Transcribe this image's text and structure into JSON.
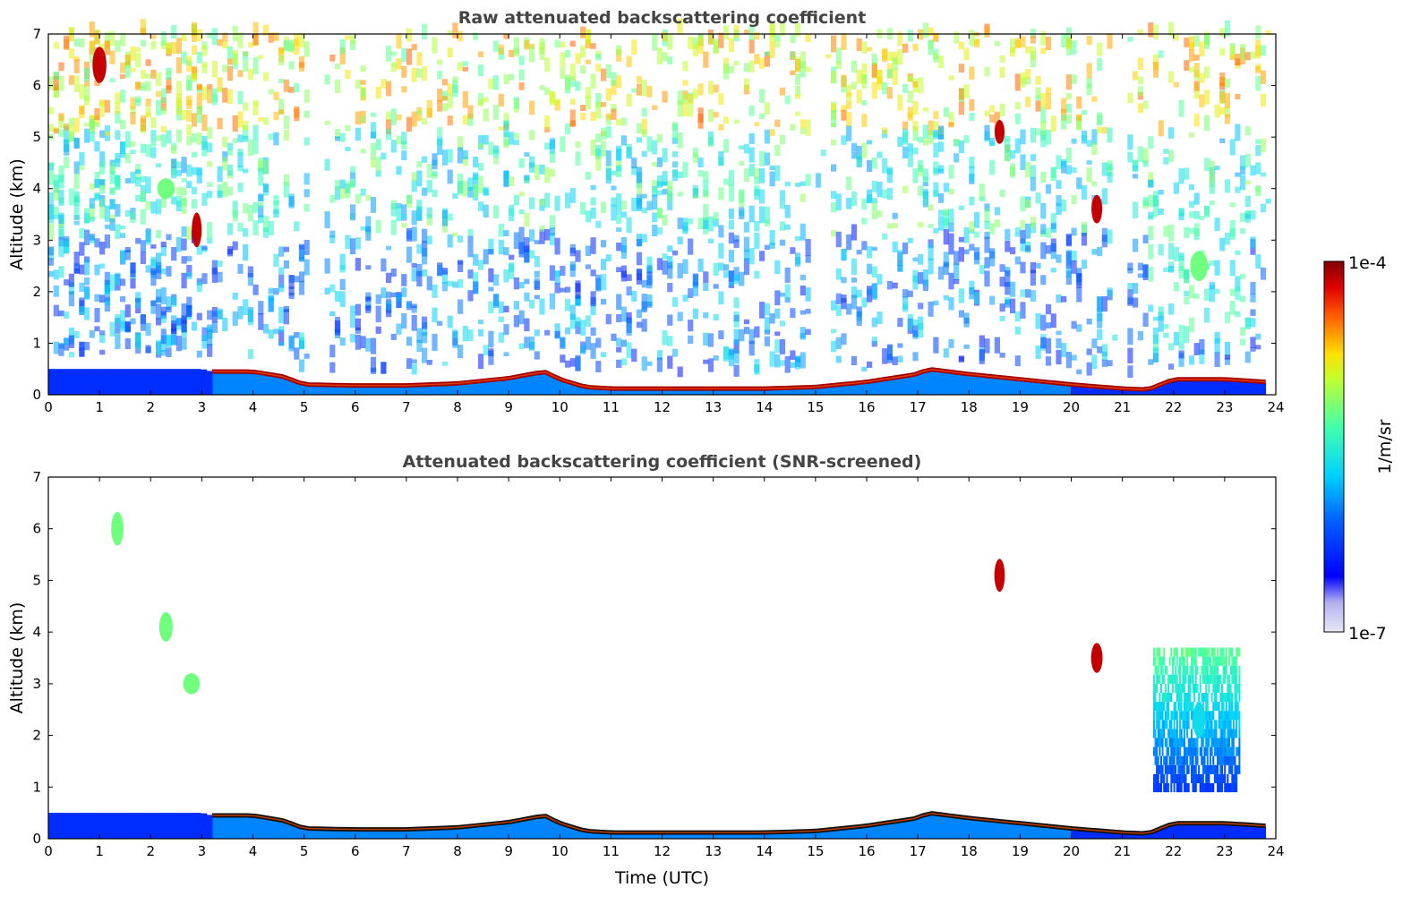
{
  "chart_data": [
    {
      "type": "heatmap",
      "title": "Raw attenuated backscattering coefficient",
      "xlabel": "",
      "ylabel": "Altitude (km)",
      "xlim": [
        0,
        24
      ],
      "ylim": [
        0,
        7
      ],
      "x_ticks": [
        "0",
        "1",
        "2",
        "3",
        "4",
        "5",
        "6",
        "7",
        "8",
        "9",
        "10",
        "11",
        "12",
        "13",
        "14",
        "15",
        "16",
        "17",
        "18",
        "19",
        "20",
        "21",
        "22",
        "23",
        "24"
      ],
      "y_ticks": [
        "0",
        "1",
        "2",
        "3",
        "4",
        "5",
        "6",
        "7"
      ],
      "grid": false,
      "color_scale": "log",
      "boundary_layer_top_km": {
        "time_utc": [
          0,
          3,
          3.2,
          4,
          4.6,
          5,
          6,
          7,
          8,
          9,
          9.7,
          10,
          10.5,
          11,
          12,
          13,
          14,
          15,
          16,
          17,
          17.2,
          18,
          19,
          20,
          21,
          21.5,
          22,
          23,
          23.8
        ],
        "altitude": [
          0.5,
          0.5,
          0.45,
          0.45,
          0.35,
          0.2,
          0.18,
          0.18,
          0.22,
          0.32,
          0.45,
          0.3,
          0.15,
          0.12,
          0.12,
          0.12,
          0.12,
          0.15,
          0.25,
          0.4,
          0.5,
          0.4,
          0.3,
          0.2,
          0.12,
          0.1,
          0.3,
          0.3,
          0.25
        ]
      },
      "notable_features": [
        {
          "time_utc": 1.0,
          "altitude_km": 6.4,
          "level": "high"
        },
        {
          "time_utc": 2.3,
          "altitude_km": 4.0,
          "level": "medium"
        },
        {
          "time_utc": 2.9,
          "altitude_km": 3.2,
          "level": "high"
        },
        {
          "time_utc": 18.6,
          "altitude_km": 5.1,
          "level": "high"
        },
        {
          "time_utc": 20.5,
          "altitude_km": 3.6,
          "level": "high"
        },
        {
          "time_utc": 22.5,
          "altitude_km": 2.5,
          "level": "medium"
        }
      ]
    },
    {
      "type": "heatmap",
      "title": "Attenuated backscattering coefficient (SNR-screened)",
      "xlabel": "Time (UTC)",
      "ylabel": "Altitude (km)",
      "xlim": [
        0,
        24
      ],
      "ylim": [
        0,
        7
      ],
      "x_ticks": [
        "0",
        "1",
        "2",
        "3",
        "4",
        "5",
        "6",
        "7",
        "8",
        "9",
        "10",
        "11",
        "12",
        "13",
        "14",
        "15",
        "16",
        "17",
        "18",
        "19",
        "20",
        "21",
        "22",
        "23",
        "24"
      ],
      "y_ticks": [
        "0",
        "1",
        "2",
        "3",
        "4",
        "5",
        "6",
        "7"
      ],
      "grid": false,
      "color_scale": "log",
      "boundary_layer_top_km": {
        "time_utc": [
          0,
          3,
          3.2,
          4,
          4.6,
          5,
          6,
          7,
          8,
          9,
          9.7,
          10,
          10.5,
          11,
          12,
          13,
          14,
          15,
          16,
          17,
          17.2,
          18,
          19,
          20,
          21,
          21.5,
          22,
          23,
          23.8
        ],
        "altitude": [
          0.5,
          0.5,
          0.45,
          0.45,
          0.35,
          0.2,
          0.18,
          0.18,
          0.22,
          0.32,
          0.45,
          0.3,
          0.15,
          0.12,
          0.12,
          0.12,
          0.12,
          0.15,
          0.25,
          0.4,
          0.5,
          0.4,
          0.3,
          0.2,
          0.12,
          0.1,
          0.3,
          0.3,
          0.25
        ]
      },
      "notable_features": [
        {
          "time_utc": 1.35,
          "altitude_km": 6.0,
          "level": "medium"
        },
        {
          "time_utc": 2.3,
          "altitude_km": 4.1,
          "level": "medium"
        },
        {
          "time_utc": 2.8,
          "altitude_km": 3.0,
          "level": "medium"
        },
        {
          "time_utc": 18.6,
          "altitude_km": 5.1,
          "level": "high"
        },
        {
          "time_utc": 20.5,
          "altitude_km": 3.5,
          "level": "high"
        },
        {
          "time_utc": 22.5,
          "altitude_km": 2.3,
          "level": "low"
        }
      ]
    }
  ],
  "colorbar": {
    "label": "1/m/sr",
    "max_label": "1e-4",
    "min_label": "1e-7",
    "colors": [
      "#e8e8f8",
      "#0000ff",
      "#00a0ff",
      "#00e0e0",
      "#60ff90",
      "#e0ff20",
      "#ffa000",
      "#ff2000",
      "#800000"
    ]
  }
}
